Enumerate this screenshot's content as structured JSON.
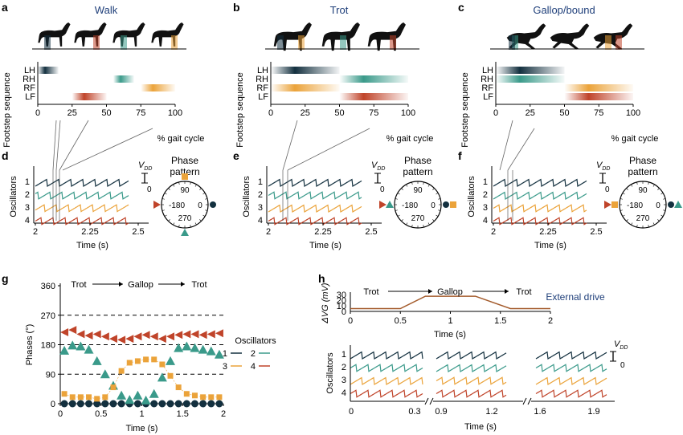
{
  "colors": {
    "osc1": "#13303f",
    "osc2": "#3a9a8a",
    "osc3": "#eba33a",
    "osc4": "#c0442a",
    "title": "#1f3f7a",
    "axis": "#222222"
  },
  "panel_labels": [
    "a",
    "b",
    "c",
    "d",
    "e",
    "f",
    "g",
    "h"
  ],
  "gait_panels": [
    {
      "label": "a",
      "title": "Walk",
      "ylabel": "Footstep sequence",
      "xlabel": "% gait cycle",
      "xticks": [
        "0",
        "25",
        "50",
        "75",
        "100"
      ],
      "legs": [
        "LH",
        "RH",
        "RF",
        "LF"
      ],
      "bars": [
        [
          0,
          15
        ],
        [
          55,
          70
        ],
        [
          75,
          100
        ],
        [
          25,
          50
        ]
      ]
    },
    {
      "label": "b",
      "title": "Trot",
      "ylabel": "Footstep sequence",
      "xlabel": "% gait cycle",
      "xticks": [
        "0",
        "25",
        "50",
        "75",
        "100"
      ],
      "legs": [
        "LH",
        "RH",
        "RF",
        "LF"
      ],
      "bars": [
        [
          0,
          50
        ],
        [
          50,
          100
        ],
        [
          0,
          50
        ],
        [
          50,
          100
        ]
      ]
    },
    {
      "label": "c",
      "title": "Gallop/bound",
      "ylabel": "Footstep sequence",
      "xlabel": "% gait cycle",
      "xticks": [
        "0",
        "25",
        "50",
        "75",
        "100"
      ],
      "legs": [
        "LH",
        "RH",
        "RF",
        "LF"
      ],
      "bars": [
        [
          0,
          50
        ],
        [
          0,
          50
        ],
        [
          50,
          100
        ],
        [
          50,
          100
        ]
      ]
    }
  ],
  "osc_panels": [
    {
      "label": "d",
      "ylabel": "Oscillators",
      "xlabel": "Time (s)",
      "xticks": [
        "2",
        "2.25",
        "2.5"
      ],
      "vdd_label": "V",
      "vdd_sub": "DD",
      "vdd_zero": "0",
      "phase_title": [
        "Phase",
        "pattern"
      ],
      "dial": [
        "90",
        "-180",
        "0",
        "270"
      ],
      "phases": [
        0,
        270,
        90,
        180
      ]
    },
    {
      "label": "e",
      "ylabel": "Oscillators",
      "xlabel": "Time (s)",
      "xticks": [
        "2",
        "2.25",
        "2.5"
      ],
      "vdd_label": "V",
      "vdd_sub": "DD",
      "vdd_zero": "0",
      "phase_title": [
        "Phase",
        "pattern"
      ],
      "dial": [
        "90",
        "-180",
        "0",
        "270"
      ],
      "phases": [
        0,
        180,
        0,
        180
      ]
    },
    {
      "label": "f",
      "ylabel": "Oscillators",
      "xlabel": "Time (s)",
      "xticks": [
        "2",
        "2.25",
        "2.5"
      ],
      "vdd_label": "V",
      "vdd_sub": "DD",
      "vdd_zero": "0",
      "phase_title": [
        "Phase",
        "pattern"
      ],
      "dial": [
        "90",
        "-180",
        "0",
        "270"
      ],
      "phases": [
        0,
        0,
        180,
        180
      ]
    }
  ],
  "osc_labels": [
    "1",
    "2",
    "3",
    "4"
  ],
  "chart_data": [
    {
      "type": "scatter",
      "panel": "g",
      "ylabel": "Phases (°)",
      "xlabel": "Time (s)",
      "xlim": [
        0,
        2
      ],
      "ylim": [
        0,
        360
      ],
      "yticks": [
        "0",
        "90",
        "180",
        "270",
        "360"
      ],
      "xticks": [
        "0",
        "0.5",
        "1",
        "1.5",
        "2"
      ],
      "transitions": [
        "Trot",
        "Gallop",
        "Trot"
      ],
      "legend_title": "Oscillators",
      "x": [
        0.05,
        0.15,
        0.25,
        0.35,
        0.45,
        0.55,
        0.65,
        0.75,
        0.85,
        0.95,
        1.05,
        1.15,
        1.25,
        1.35,
        1.45,
        1.55,
        1.65,
        1.75,
        1.85,
        1.95
      ],
      "series": [
        {
          "name": "1",
          "values": [
            0,
            0,
            0,
            0,
            0,
            0,
            0,
            0,
            0,
            0,
            0,
            0,
            0,
            0,
            0,
            0,
            0,
            0,
            0,
            0
          ]
        },
        {
          "name": "2",
          "values": [
            162,
            178,
            175,
            165,
            130,
            90,
            55,
            25,
            12,
            25,
            10,
            30,
            80,
            130,
            170,
            175,
            170,
            165,
            160,
            150
          ]
        },
        {
          "name": "3",
          "values": [
            30,
            20,
            20,
            20,
            15,
            20,
            50,
            100,
            125,
            130,
            135,
            135,
            120,
            85,
            50,
            30,
            25,
            20,
            20,
            20
          ]
        },
        {
          "name": "4",
          "values": [
            218,
            225,
            212,
            208,
            212,
            205,
            198,
            195,
            198,
            205,
            210,
            205,
            198,
            205,
            210,
            212,
            212,
            210,
            212,
            215
          ]
        }
      ]
    },
    {
      "type": "line",
      "panel": "h",
      "ylabel": "ΔVG (mV)",
      "xlabel": "Time (s)",
      "annotation": "External drive",
      "transitions": [
        "Trot",
        "Gallop",
        "Trot"
      ],
      "xlim": [
        0,
        2
      ],
      "ylim": [
        0,
        30
      ],
      "yticks": [
        "0",
        "10",
        "20",
        "30"
      ],
      "xticks": [
        "0",
        "0.5",
        "1",
        "1.5",
        "2"
      ],
      "x": [
        0,
        0.5,
        0.75,
        1.25,
        1.6,
        2
      ],
      "values": [
        5,
        5,
        27,
        27,
        5,
        5
      ]
    }
  ],
  "h_bottom": {
    "ylabel": "Oscillators",
    "xlabel": "Time (s)",
    "xticks": [
      "0",
      "0.3",
      "0.9",
      "1.2",
      "1.6",
      "1.9"
    ],
    "vdd_label": "V",
    "vdd_sub": "DD",
    "vdd_zero": "0"
  }
}
